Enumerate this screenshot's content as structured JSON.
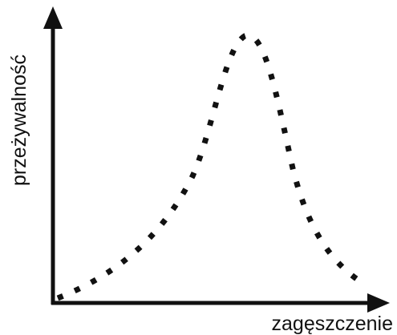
{
  "axes": {
    "y_label": "przeżywalność",
    "x_label": "zagęszczenie"
  }
}
